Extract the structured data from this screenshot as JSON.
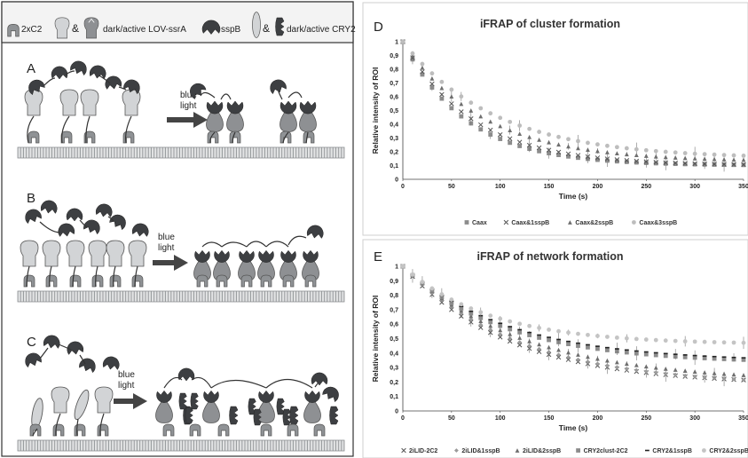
{
  "legend": {
    "items": [
      {
        "label": "2xC2"
      },
      {
        "label": "&"
      },
      {
        "label": "dark/active LOV-ssrA"
      },
      {
        "label": "sspB"
      },
      {
        "label": "&"
      },
      {
        "label": "dark/active CRY2"
      }
    ]
  },
  "panels": {
    "A": {
      "letter": "A",
      "arrow_label_1": "blue",
      "arrow_label_2": "light"
    },
    "B": {
      "letter": "B",
      "arrow_label_1": "blue",
      "arrow_label_2": "light"
    },
    "C": {
      "letter": "C",
      "arrow_label_1": "blue",
      "arrow_label_2": "light"
    }
  },
  "colors": {
    "sspb": "#3d3f42",
    "lov_dark": "#d2d4d6",
    "lov_active": "#8e9093",
    "membrane": "#9a9da0",
    "anchor": "#8f9295"
  },
  "chart_data": [
    {
      "panel_letter": "D",
      "type": "scatter",
      "title": "iFRAP of cluster formation",
      "xlabel": "Time (s)",
      "ylabel": "Relative intensity of ROI",
      "xlim": [
        0,
        350
      ],
      "ylim": [
        0,
        1
      ],
      "xticks": [
        "0",
        "50",
        "100",
        "150",
        "200",
        "250",
        "300",
        "350"
      ],
      "yticks": [
        "0",
        "0,1",
        "0,2",
        "0,3",
        "0,4",
        "0,5",
        "0,6",
        "0,7",
        "0,8",
        "0,9",
        "1"
      ],
      "legend_position": "bottom",
      "series": [
        {
          "name": "Caax",
          "marker": "square",
          "color": "#8c8c8c",
          "tau": 65,
          "plateau": 0.1
        },
        {
          "name": "Caax&1sspB",
          "marker": "x",
          "color": "#555555",
          "tau": 72,
          "plateau": 0.1
        },
        {
          "name": "Caax&2sspB",
          "marker": "triangle",
          "color": "#6e6e6e",
          "tau": 82,
          "plateau": 0.13
        },
        {
          "name": "Caax&3sspB",
          "marker": "circle",
          "color": "#bdbdbd",
          "tau": 95,
          "plateau": 0.15
        }
      ]
    },
    {
      "panel_letter": "E",
      "type": "scatter",
      "title": "iFRAP of network formation",
      "xlabel": "Time (s)",
      "ylabel": "Relative intensity of ROI",
      "xlim": [
        0,
        350
      ],
      "ylim": [
        0,
        1
      ],
      "xticks": [
        "0",
        "50",
        "100",
        "150",
        "200",
        "250",
        "300",
        "350"
      ],
      "yticks": [
        "0",
        "0,1",
        "0,2",
        "0,3",
        "0,4",
        "0,5",
        "0,6",
        "0,7",
        "0,8",
        "0,9",
        "1"
      ],
      "legend_position": "bottom",
      "series": [
        {
          "name": "2iLID-2C2",
          "marker": "x",
          "color": "#555555",
          "tau": 110,
          "plateau": 0.18
        },
        {
          "name": "2iLID&1sspB",
          "marker": "diamond",
          "color": "#9a9a9a",
          "tau": 120,
          "plateau": 0.17
        },
        {
          "name": "2iLID&2sspB",
          "marker": "triangle",
          "color": "#6e6e6e",
          "tau": 125,
          "plateau": 0.2
        },
        {
          "name": "CRY2clust-2C2",
          "marker": "square",
          "color": "#8c8c8c",
          "tau": 105,
          "plateau": 0.33
        },
        {
          "name": "CRY2&1sspB",
          "marker": "dash",
          "color": "#222222",
          "tau": 110,
          "plateau": 0.34
        },
        {
          "name": "CRY2&2sspB",
          "marker": "circle",
          "color": "#c4c4c4",
          "tau": 90,
          "plateau": 0.46
        }
      ]
    }
  ]
}
